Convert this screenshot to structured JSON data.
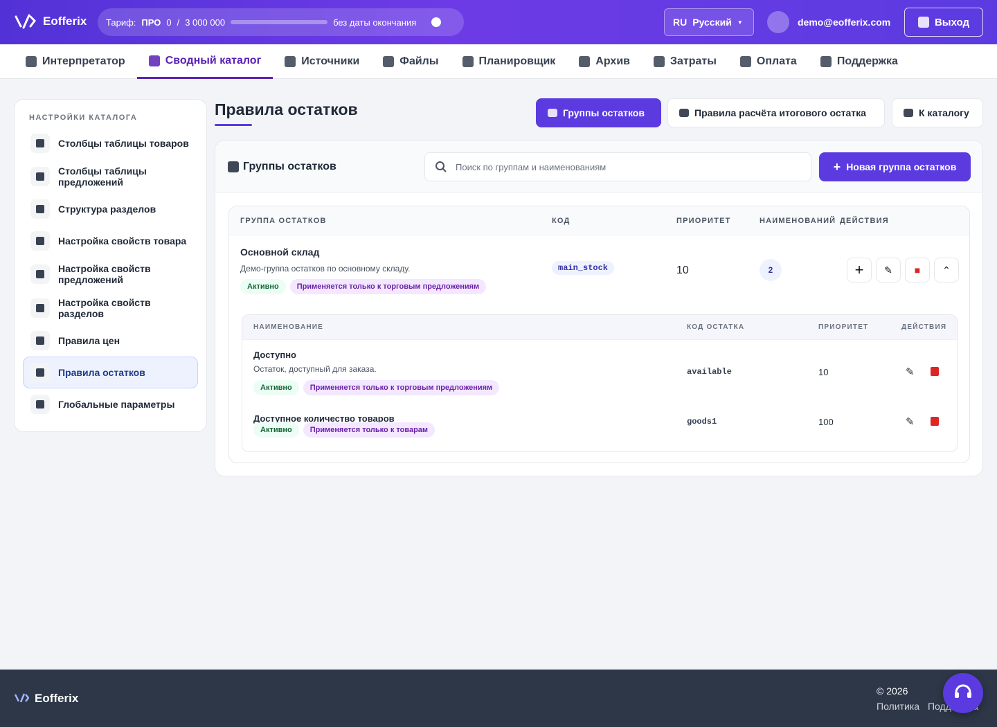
{
  "header": {
    "brand": "Eofferix",
    "tariff_label": "Тариф:",
    "tariff": "ПРО",
    "usage": 0,
    "separator": "/",
    "limit": "3 000 000",
    "expiry": "без даты окончания",
    "lang_code": "RU",
    "lang": "Русский",
    "email": "demo@eofferix.com",
    "logout": "Выход"
  },
  "nav": {
    "items": [
      "Интерпретатор",
      "Сводный каталог",
      "Источники",
      "Файлы",
      "Планировщик",
      "Архив",
      "Затраты",
      "Оплата",
      "Поддержка"
    ],
    "active": 1
  },
  "sidebar": {
    "title": "НАСТРОЙКИ КАТАЛОГА",
    "items": [
      "Столбцы таблицы товаров",
      "Столбцы таблицы предложений",
      "Структура разделов",
      "Настройка свойств товара",
      "Настройка свойств предложений",
      "Настройка свойств разделов",
      "Правила цен",
      "Правила остатков",
      "Глобальные параметры"
    ],
    "active": 7
  },
  "page": {
    "title": "Правила остатков",
    "buttons": [
      "Группы остатков",
      "Правила расчёта итогового остатка",
      "К каталогу"
    ]
  },
  "panel": {
    "title": "Группы остатков",
    "search_placeholder": "Поиск по группам и наименованиям",
    "new_button": "Новая группа остатков"
  },
  "groups_table": {
    "columns": [
      "ГРУППА ОСТАТКОВ",
      "КОД",
      "ПРИОРИТЕТ",
      "НАИМЕНОВАНИЙ",
      "ДЕЙСТВИЯ"
    ],
    "rows": [
      {
        "name": "Основной склад",
        "description": "Демо-группа остатков по основному складу.",
        "badges": [
          "Активно",
          "Применяется только к торговым предложениям"
        ],
        "code": "main_stock",
        "priority": 10,
        "items_count": 2
      }
    ]
  },
  "items_table": {
    "columns": [
      "НАИМЕНОВАНИЕ",
      "КОД ОСТАТКА",
      "ПРИОРИТЕТ",
      "ДЕЙСТВИЯ"
    ],
    "rows": [
      {
        "name": "Доступно",
        "description": "Остаток, доступный для заказа.",
        "badges": [
          "Активно",
          "Применяется только к торговым предложениям"
        ],
        "code": "available",
        "priority": 10
      },
      {
        "name": "Доступное количество товаров",
        "badges": [
          "Активно",
          "Применяется только к товарам"
        ],
        "code": "goods1",
        "priority": 100
      }
    ]
  },
  "footer": {
    "brand": "Eofferix",
    "copyright": "© 2026",
    "links": [
      "Политика",
      "Поддержка"
    ]
  }
}
